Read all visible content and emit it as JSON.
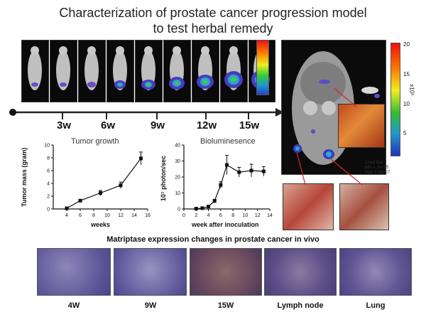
{
  "title_line1": "Characterization of prostate cancer progression model",
  "title_line2": "to test herbal remedy",
  "timeline": {
    "ticks": [
      "3w",
      "6w",
      "9w",
      "12w",
      "15w"
    ],
    "colors": {
      "line": "#222222",
      "dot": "#111111"
    }
  },
  "big_colorbar": {
    "ticks": [
      "20",
      "15",
      "10",
      "5"
    ],
    "unit": "x10⁶",
    "info_lines": [
      "Color Bar",
      "Min = 2e+05",
      "Max = 2e+07"
    ]
  },
  "chart_data": [
    {
      "type": "line",
      "title": "Tumor growth",
      "xlabel": "weeks",
      "ylabel": "Tumor mass (gram)",
      "x": [
        4,
        6,
        9,
        12,
        15
      ],
      "y": [
        0.1,
        1.3,
        2.5,
        3.7,
        7.9
      ],
      "err": [
        0.1,
        0.2,
        0.4,
        0.5,
        1.0
      ],
      "xlim": [
        2,
        16
      ],
      "ylim": [
        0,
        10
      ],
      "xticks": [
        "4",
        "6",
        "8",
        "10",
        "12",
        "14",
        "16"
      ],
      "yticks": [
        "0",
        "2",
        "4",
        "6",
        "8",
        "10"
      ],
      "marker": "square",
      "grid": false
    },
    {
      "type": "line",
      "title": "Bioluminesence",
      "xlabel": "week after inoculation",
      "ylabel": "10⁷ photon/sec",
      "x": [
        2,
        3,
        4,
        5,
        6,
        7,
        9,
        11,
        13
      ],
      "y": [
        0.2,
        0.5,
        1.5,
        5.0,
        15.0,
        27.5,
        23.0,
        24.0,
        23.5
      ],
      "err": [
        0.1,
        0.2,
        0.5,
        1.0,
        2.0,
        6.0,
        3.0,
        4.0,
        3.0
      ],
      "xlim": [
        0,
        14
      ],
      "ylim": [
        0,
        40
      ],
      "xticks": [
        "0",
        "2",
        "4",
        "6",
        "8",
        "10",
        "12",
        "14"
      ],
      "yticks": [
        "0",
        "10",
        "20",
        "30",
        "40"
      ],
      "marker": "square",
      "grid": false
    }
  ],
  "histology": {
    "title": "Matriptase expression changes in prostate cancer in vivo",
    "labels": [
      "4W",
      "9W",
      "15W",
      "Lymph node",
      "Lung"
    ]
  }
}
